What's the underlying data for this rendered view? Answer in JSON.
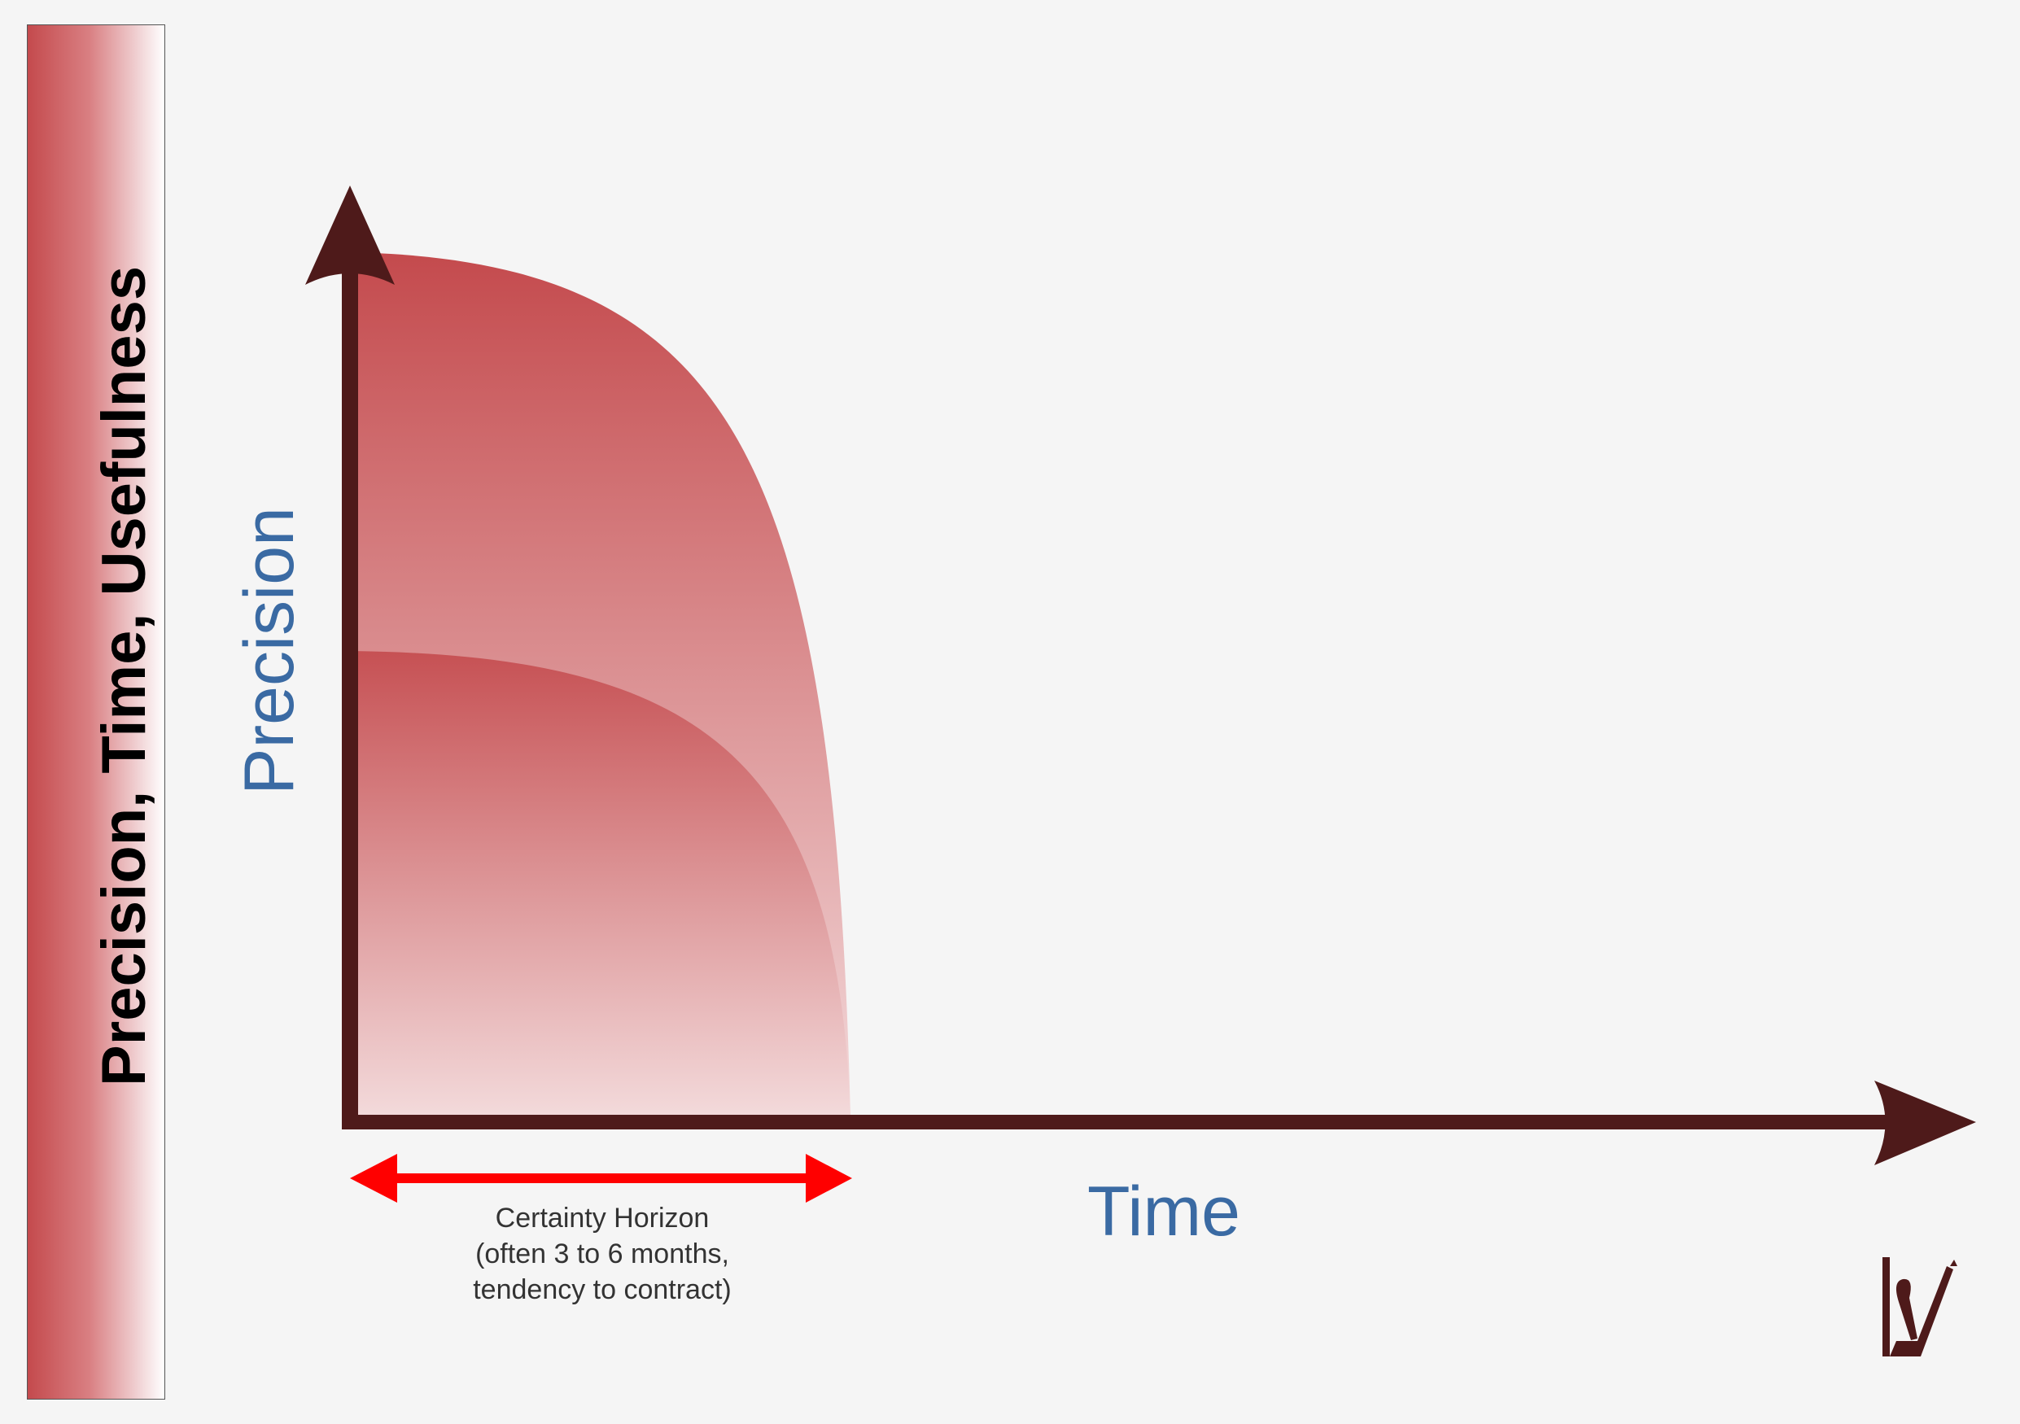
{
  "sidebar": {
    "title": "Precision, Time, Usefulness"
  },
  "axes": {
    "y_label": "Precision",
    "x_label": "Time"
  },
  "certainty_horizon": {
    "line1": "Certainty Horizon",
    "line2": "(often 3 to 6 months,",
    "line3": "tendency to contract)"
  },
  "colors": {
    "axis": "#4e1a1a",
    "fill_dark": "#c44a4d",
    "fill_light": "#f3dadb",
    "horizon_arrow": "#ff0000",
    "label_blue": "#3a6aa3"
  },
  "logo": {
    "icon": "lv-logo-icon"
  }
}
